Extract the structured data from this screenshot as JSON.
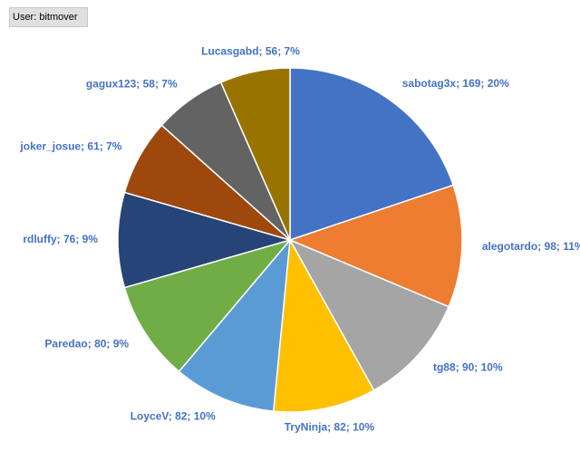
{
  "header": {
    "user": "User: bitmover"
  },
  "chart_data": {
    "type": "pie",
    "values": [
      169,
      98,
      90,
      82,
      82,
      80,
      76,
      61,
      58,
      56
    ],
    "value_labels": [
      "sabotag3x; 169; 20%",
      "alegotardo; 98; 11%",
      "tg88; 90; 10%",
      "TryNinja; 82; 10%",
      "LoyceV; 82; 10%",
      "Paredao; 80; 9%",
      "rdluffy; 76; 9%",
      "joker_josue; 61; 7%",
      "gagux123; 58; 7%",
      "Lucasgabd; 56; 7%"
    ],
    "colors": [
      "#4472c4",
      "#ed7d31",
      "#a5a5a5",
      "#ffc000",
      "#5b9bd5",
      "#70ad47",
      "#264478",
      "#9e480e",
      "#636363",
      "#997300"
    ]
  }
}
